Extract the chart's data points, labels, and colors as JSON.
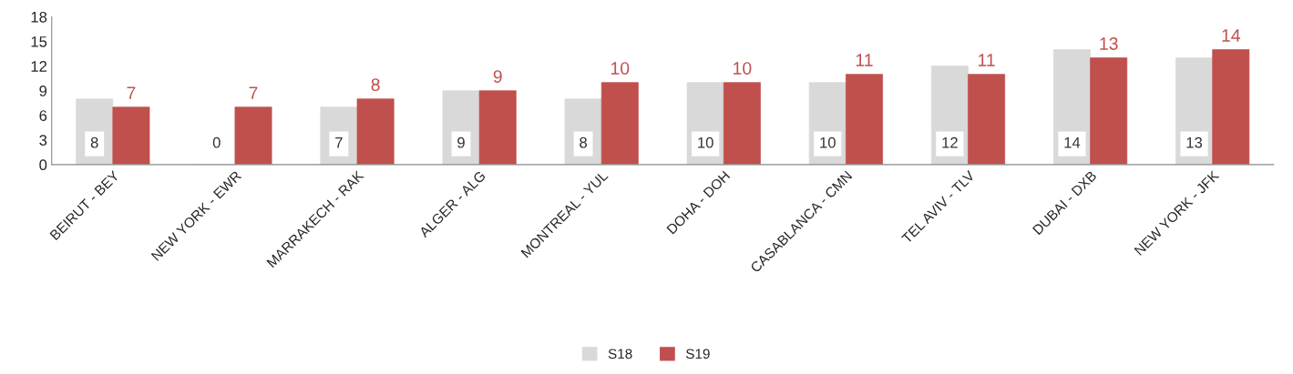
{
  "chart_data": {
    "type": "bar",
    "categories": [
      "BEIRUT - BEY",
      "NEW YORK - EWR",
      "MARRAKECH - RAK",
      "ALGER - ALG",
      "MONTREAL - YUL",
      "DOHA - DOH",
      "CASABLANCA - CMN",
      "TEL AVIV - TLV",
      "DUBAI - DXB",
      "NEW YORK - JFK"
    ],
    "series": [
      {
        "name": "S18",
        "color": "#d9d9d9",
        "values": [
          8,
          0,
          7,
          9,
          8,
          10,
          10,
          12,
          14,
          13
        ]
      },
      {
        "name": "S19",
        "color": "#c0504d",
        "values": [
          7,
          7,
          8,
          9,
          10,
          10,
          11,
          11,
          13,
          14
        ]
      }
    ],
    "ylim": [
      0,
      18
    ],
    "yticks": [
      0,
      3,
      6,
      9,
      12,
      15,
      18
    ],
    "grid": false,
    "legend": "bottom",
    "data_labels": true
  }
}
